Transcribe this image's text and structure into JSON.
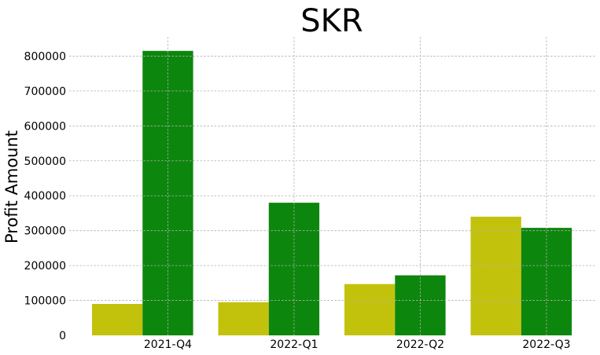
{
  "chart_data": {
    "type": "bar",
    "title": "SKR",
    "xlabel": "",
    "ylabel": "Profit Amount",
    "categories": [
      "2021-Q4",
      "2022-Q1",
      "2022-Q2",
      "2022-Q3"
    ],
    "series": [
      {
        "values": [
          90000,
          95000,
          147000,
          340000
        ],
        "color": "#bfbf00"
      },
      {
        "values": [
          815000,
          380000,
          172000,
          308000
        ],
        "color": "#008000"
      }
    ],
    "yticks": [
      0,
      100000,
      200000,
      300000,
      400000,
      500000,
      600000,
      700000,
      800000
    ],
    "ylim": [
      0,
      855000
    ],
    "grid": true,
    "legend": "none"
  }
}
